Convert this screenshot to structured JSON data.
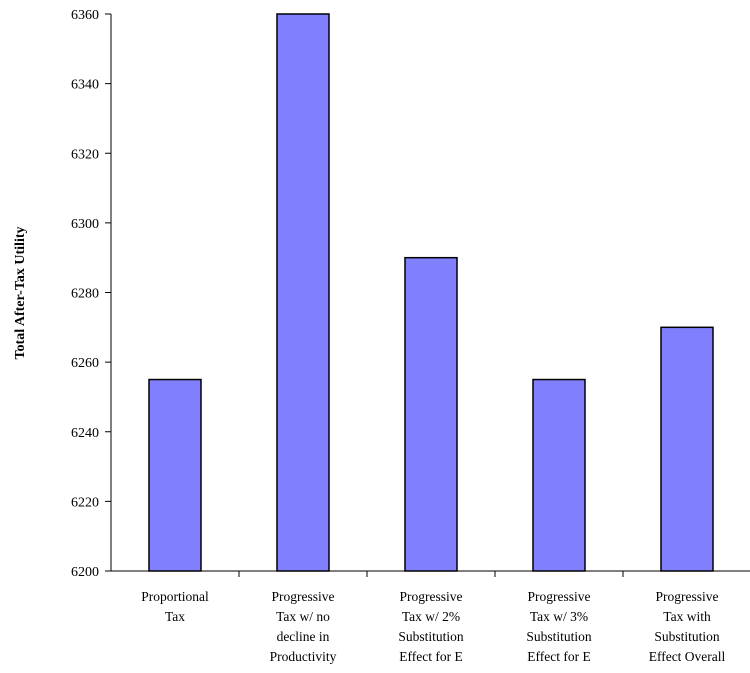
{
  "chart_data": {
    "type": "bar",
    "title": "",
    "xlabel": "",
    "ylabel": "Total After-Tax Utility",
    "ylim": [
      6200,
      6360
    ],
    "yticks": [
      6200,
      6220,
      6240,
      6260,
      6280,
      6300,
      6320,
      6340,
      6360
    ],
    "grid": false,
    "legend": "none",
    "bar_color": "#8080FF",
    "bar_edge_color": "#000000",
    "categories": [
      [
        "Proportional",
        "Tax"
      ],
      [
        "Progressive",
        "Tax w/ no",
        "decline in",
        "Productivity"
      ],
      [
        "Progressive",
        "Tax w/ 2%",
        "Substitution",
        "Effect for E"
      ],
      [
        "Progressive",
        "Tax w/ 3%",
        "Substitution",
        "Effect for E"
      ],
      [
        "Progressive",
        "Tax with",
        "Substitution",
        "Effect Overall"
      ]
    ],
    "values": [
      6255,
      6360,
      6290,
      6255,
      6270
    ]
  }
}
